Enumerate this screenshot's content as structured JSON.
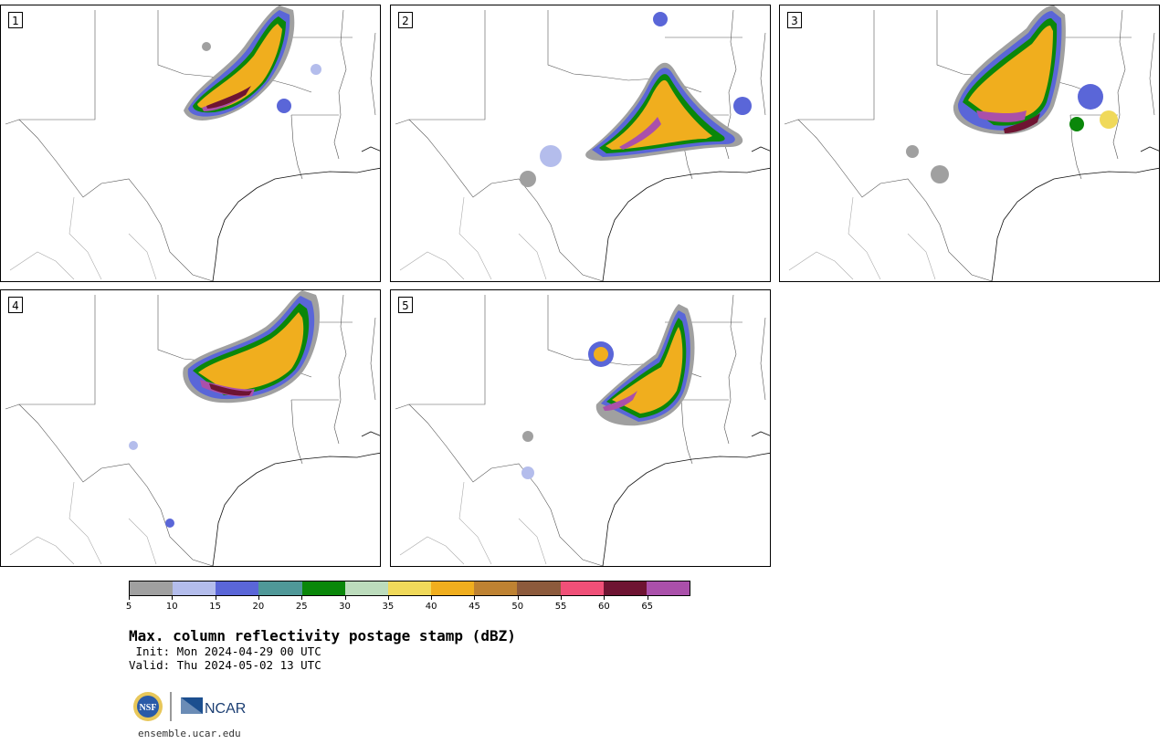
{
  "panels": [
    {
      "number": "1"
    },
    {
      "number": "2"
    },
    {
      "number": "3"
    },
    {
      "number": "4"
    },
    {
      "number": "5"
    }
  ],
  "colorbar": {
    "ticks": [
      "5",
      "10",
      "15",
      "20",
      "25",
      "30",
      "35",
      "40",
      "45",
      "50",
      "55",
      "60",
      "65"
    ],
    "colors": [
      "#a0a0a0",
      "#b4bdec",
      "#5a66d8",
      "#4f9898",
      "#0a870a",
      "#bcdcbc",
      "#f0d95a",
      "#f0ae1e",
      "#be8232",
      "#8c5a3c",
      "#f05078",
      "#6e1432",
      "#aa50aa"
    ]
  },
  "title": "Max. column reflectivity postage stamp (dBZ)",
  "init": " Init: Mon 2024-04-29 00 UTC",
  "valid": "Valid: Thu 2024-05-02 13 UTC",
  "logos": {
    "nsf": "NSF",
    "ncar": "NCAR"
  },
  "url": "ensemble.ucar.edu"
}
